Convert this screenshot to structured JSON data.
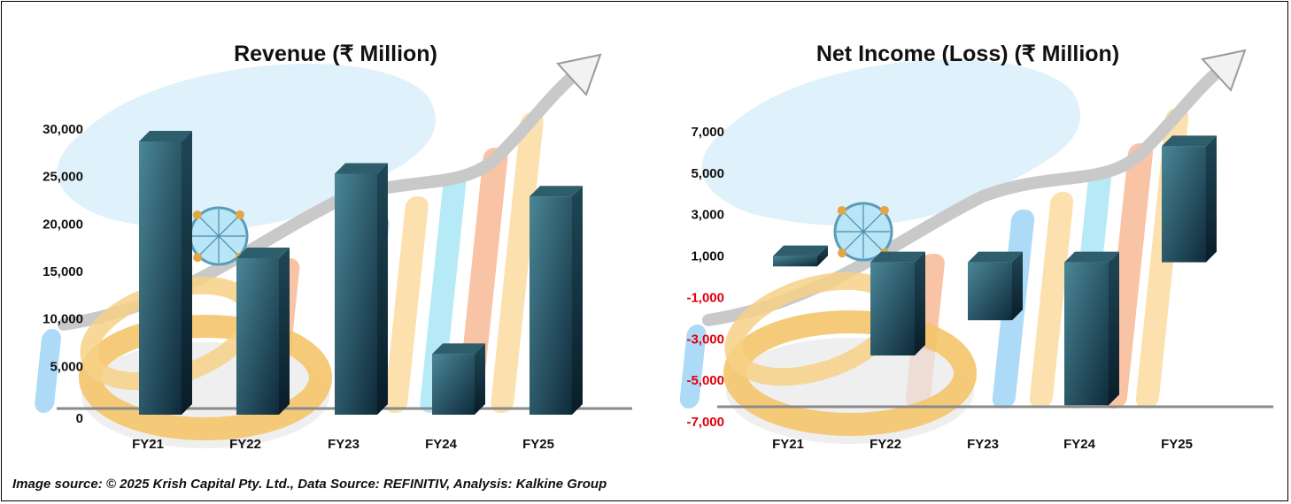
{
  "source_text": "Image source: © 2025 Krish Capital Pty. Ltd., Data Source: REFINITIV, Analysis: Kalkine Group",
  "colors": {
    "bar_top": "#2e5d6b",
    "bar_front_light": "#4a8797",
    "bar_front_dark": "#0e2a3a",
    "negative_tick": "#e0000e",
    "positive_tick": "#111111",
    "backdrop_blue": "#dff1fb",
    "ring_gold": "#f4c46a",
    "arrow_gray": "#c9c9c9"
  },
  "icons": [
    "diamond-ring-illustration",
    "growth-arrow-illustration"
  ],
  "chart_data": [
    {
      "type": "bar",
      "style": "3d",
      "title": "Revenue (₹ Million)",
      "xlabel": "",
      "ylabel": "",
      "categories": [
        "FY21",
        "FY22",
        "FY23",
        "FY24",
        "FY25"
      ],
      "values": [
        28700,
        16400,
        25300,
        6300,
        22900
      ],
      "yticks": [
        "0",
        "5,000",
        "10,000",
        "15,000",
        "20,000",
        "25,000",
        "30,000"
      ],
      "ylim": [
        0,
        30000
      ],
      "grid": false,
      "legend": "none"
    },
    {
      "type": "bar",
      "style": "3d-floating",
      "title": "Net Income (Loss) (₹ Million)",
      "xlabel": "",
      "ylabel": "",
      "categories": [
        "FY21",
        "FY22",
        "FY23",
        "FY24",
        "FY25"
      ],
      "values": [
        0.9,
        -4.1,
        -2.0,
        -6.2,
        5.6
      ],
      "value_unit": "thousand",
      "values_in_units": [
        900,
        -4100,
        -2000,
        -6200,
        5600
      ],
      "bar_ranges": [
        [
          500,
          1000
        ],
        [
          -3800,
          700
        ],
        [
          -2100,
          700
        ],
        [
          -6200,
          700
        ],
        [
          700,
          6300
        ]
      ],
      "yticks": [
        "-7,000",
        "-5,000",
        "-3,000",
        "-1,000",
        "1,000",
        "3,000",
        "5,000",
        "7,000"
      ],
      "ylim": [
        -7000,
        7000
      ],
      "grid": false,
      "legend": "none"
    }
  ]
}
